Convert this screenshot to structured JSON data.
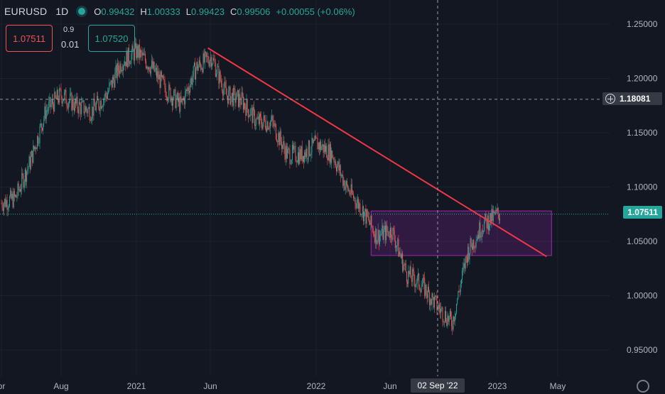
{
  "header": {
    "symbol": "EURUSD",
    "timeframe": "1D",
    "open_label": "O",
    "open": "0.99432",
    "high_label": "H",
    "high": "1.00333",
    "low_label": "L",
    "low": "0.99423",
    "close_label": "C",
    "close": "0.99506",
    "change": "+0.00055 (+0.06%)"
  },
  "trade": {
    "sell_price": "1.07511",
    "buy_price": "1.07520",
    "spread": "0.9",
    "lot": "0.01"
  },
  "price_axis": {
    "ticks": [
      "1.25000",
      "1.20000",
      "1.15000",
      "1.10000",
      "1.05000",
      "1.00000",
      "0.95000"
    ],
    "last_price": "1.07511",
    "crosshair_price": "1.18081"
  },
  "time_axis": {
    "ticks": [
      "pr",
      "Aug",
      "2021",
      "Jun",
      "2022",
      "Jun",
      "2023",
      "May"
    ],
    "crosshair_date": "02 Sep '22"
  },
  "colors": {
    "up": "#26a69a",
    "down": "#ef5350",
    "background": "#131722",
    "trendline": "#f23645",
    "zone": "#9c27b0"
  },
  "chart_data": {
    "type": "candlestick",
    "ylim": [
      0.925,
      1.27
    ],
    "trendline": {
      "from": [
        "2021-05-25",
        1.228
      ],
      "to": [
        "2023-04-10",
        1.036
      ]
    },
    "zone": {
      "from": "2022-04-20",
      "to": "2023-04-20",
      "top": 1.078,
      "bottom": 1.037
    },
    "close_path": [
      [
        "2020-04-01",
        1.085
      ],
      [
        "2020-05-01",
        1.09
      ],
      [
        "2020-06-01",
        1.125
      ],
      [
        "2020-07-01",
        1.17
      ],
      [
        "2020-08-01",
        1.185
      ],
      [
        "2020-09-01",
        1.175
      ],
      [
        "2020-10-01",
        1.17
      ],
      [
        "2020-11-01",
        1.185
      ],
      [
        "2020-12-01",
        1.215
      ],
      [
        "2021-01-01",
        1.225
      ],
      [
        "2021-02-01",
        1.21
      ],
      [
        "2021-03-01",
        1.19
      ],
      [
        "2021-04-01",
        1.175
      ],
      [
        "2021-05-01",
        1.21
      ],
      [
        "2021-06-01",
        1.22
      ],
      [
        "2021-07-01",
        1.185
      ],
      [
        "2021-08-01",
        1.18
      ],
      [
        "2021-09-01",
        1.16
      ],
      [
        "2021-10-01",
        1.16
      ],
      [
        "2021-11-01",
        1.13
      ],
      [
        "2021-12-01",
        1.13
      ],
      [
        "2022-01-01",
        1.14
      ],
      [
        "2022-02-01",
        1.13
      ],
      [
        "2022-03-01",
        1.1
      ],
      [
        "2022-04-01",
        1.08
      ],
      [
        "2022-05-01",
        1.055
      ],
      [
        "2022-06-01",
        1.06
      ],
      [
        "2022-07-01",
        1.02
      ],
      [
        "2022-08-01",
        1.01
      ],
      [
        "2022-09-01",
        0.99
      ],
      [
        "2022-10-01",
        0.975
      ],
      [
        "2022-11-01",
        1.04
      ],
      [
        "2022-12-01",
        1.065
      ],
      [
        "2023-01-01",
        1.075
      ]
    ]
  }
}
